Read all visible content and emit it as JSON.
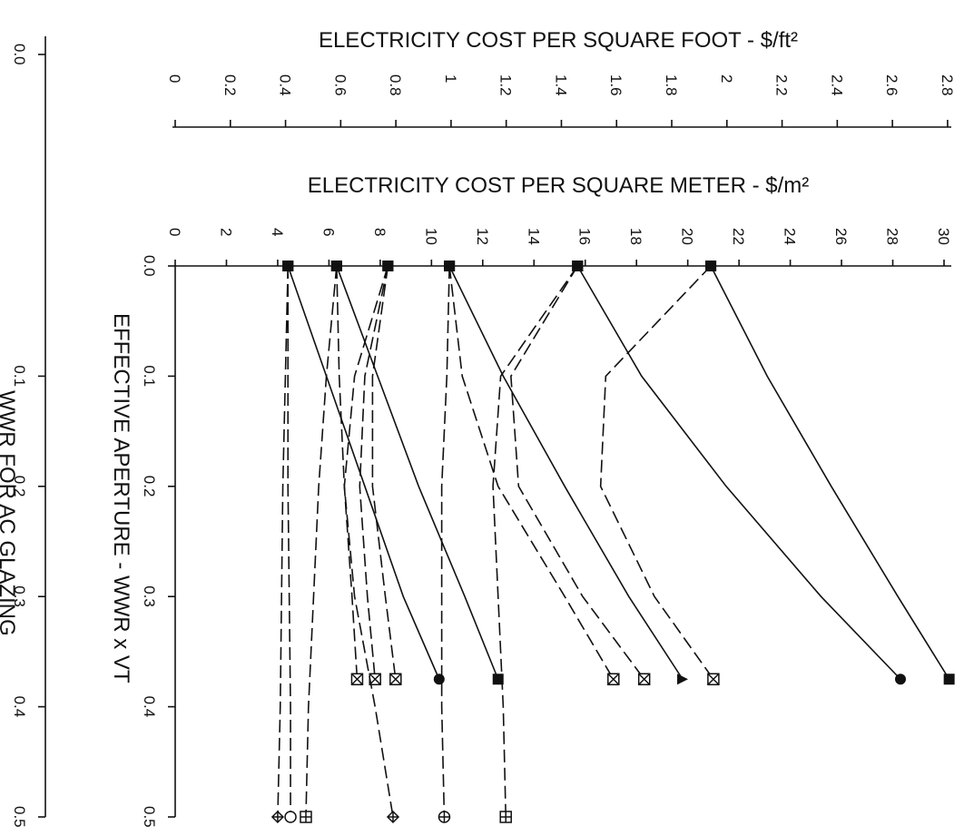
{
  "chart_data": {
    "type": "line",
    "x_label": "ELECTRICITY COST PER SQUARE METER - $/m²",
    "x2_label": "ELECTRICITY COST PER SQUARE FOOT - $/ft²",
    "y_label": "EFFECTIVE APERTURE - WWR x VT",
    "y2_label": "WWR FOR AC GLAZING",
    "xlim": [
      0,
      30
    ],
    "xticks": [
      0,
      2,
      4,
      6,
      8,
      10,
      12,
      14,
      16,
      18,
      20,
      22,
      24,
      26,
      28,
      30
    ],
    "x2lim": [
      0,
      2.8
    ],
    "x2ticks": [
      0,
      0.2,
      0.4,
      0.6,
      0.8,
      1,
      1.2,
      1.4,
      1.6,
      1.8,
      2,
      2.2,
      2.4,
      2.6,
      2.8
    ],
    "ylim": [
      0,
      0.5
    ],
    "yticks": [
      {
        "value": 0,
        "label": "0.0"
      },
      0.1,
      0.2,
      0.3,
      0.4,
      0.5
    ],
    "y2lim": [
      0,
      0.5
    ],
    "y2ticks": [
      {
        "value": 0,
        "label": "0.0"
      },
      0.1,
      0.2,
      0.3,
      0.4,
      0.5
    ],
    "start_marker": "square",
    "series": [
      {
        "color": "#111111",
        "dash": true,
        "marker": "diamond",
        "x": [
          0,
          0.1,
          0.2,
          0.3,
          0.4,
          0.5
        ],
        "values": [
          4.4,
          4.3,
          4.2,
          4.15,
          4.1,
          4.0
        ]
      },
      {
        "color": "#111111",
        "dash": true,
        "marker": "circle-open",
        "x": [
          0,
          0.1,
          0.2,
          0.3,
          0.4,
          0.5
        ],
        "values": [
          4.4,
          4.4,
          4.4,
          4.45,
          4.5,
          4.5
        ]
      },
      {
        "color": "#111111",
        "dash": true,
        "marker": "square-plus",
        "x": [
          0,
          0.1,
          0.2,
          0.3,
          0.4,
          0.5
        ],
        "values": [
          6.3,
          5.9,
          5.6,
          5.4,
          5.2,
          5.1
        ]
      },
      {
        "color": "#111111",
        "dash": false,
        "marker": "circle",
        "x": [
          0,
          0.1,
          0.2,
          0.3,
          0.375
        ],
        "values": [
          4.4,
          5.9,
          7.4,
          8.9,
          10.3
        ]
      },
      {
        "color": "#111111",
        "dash": true,
        "marker": "square-x",
        "x": [
          0,
          0.1,
          0.2,
          0.3,
          0.375
        ],
        "values": [
          6.3,
          6.4,
          6.6,
          6.9,
          7.1
        ]
      },
      {
        "color": "#111111",
        "dash": false,
        "marker": "square",
        "x": [
          0,
          0.1,
          0.2,
          0.3,
          0.375
        ],
        "values": [
          6.3,
          7.9,
          9.5,
          11.3,
          12.6
        ]
      },
      {
        "color": "#111111",
        "dash": true,
        "marker": "square-x",
        "x": [
          0,
          0.1,
          0.2,
          0.3,
          0.375
        ],
        "values": [
          8.3,
          7.4,
          7.2,
          7.5,
          7.8
        ]
      },
      {
        "color": "#111111",
        "dash": true,
        "marker": "square-x",
        "x": [
          0,
          0.1,
          0.2,
          0.3,
          0.375
        ],
        "values": [
          8.3,
          7.7,
          7.7,
          8.2,
          8.6
        ]
      },
      {
        "color": "#111111",
        "dash": true,
        "marker": "diamond",
        "x": [
          0,
          0.1,
          0.2,
          0.3,
          0.4,
          0.5
        ],
        "values": [
          8.3,
          7.0,
          6.6,
          7.0,
          7.8,
          8.5
        ]
      },
      {
        "color": "#111111",
        "dash": true,
        "marker": "circle-plus",
        "x": [
          0,
          0.1,
          0.2,
          0.3,
          0.4,
          0.5
        ],
        "values": [
          10.7,
          10.6,
          10.4,
          10.4,
          10.4,
          10.5
        ]
      },
      {
        "color": "#111111",
        "dash": true,
        "marker": "square-x",
        "x": [
          0,
          0.1,
          0.2,
          0.3,
          0.375
        ],
        "values": [
          10.7,
          11.2,
          12.6,
          15.2,
          17.1
        ]
      },
      {
        "color": "#111111",
        "dash": false,
        "marker": "triangle",
        "x": [
          0,
          0.1,
          0.2,
          0.3,
          0.375
        ],
        "values": [
          10.7,
          12.8,
          15.2,
          17.7,
          19.8
        ]
      },
      {
        "color": "#111111",
        "dash": true,
        "marker": "square-plus",
        "x": [
          0,
          0.1,
          0.2,
          0.3,
          0.4,
          0.5
        ],
        "values": [
          15.7,
          12.7,
          12.4,
          12.6,
          12.8,
          12.9
        ]
      },
      {
        "color": "#111111",
        "dash": true,
        "marker": "square-x",
        "x": [
          0,
          0.1,
          0.2,
          0.3,
          0.375
        ],
        "values": [
          15.7,
          13.1,
          13.4,
          15.9,
          18.3
        ]
      },
      {
        "color": "#111111",
        "dash": false,
        "marker": "circle",
        "x": [
          0,
          0.1,
          0.2,
          0.3,
          0.375
        ],
        "values": [
          15.7,
          18.2,
          21.5,
          25.2,
          28.3
        ]
      },
      {
        "color": "#111111",
        "dash": true,
        "marker": "square-x",
        "x": [
          0,
          0.1,
          0.2,
          0.3,
          0.375
        ],
        "values": [
          20.9,
          16.8,
          16.6,
          18.7,
          21.0
        ]
      },
      {
        "color": "#111111",
        "dash": false,
        "marker": "square",
        "x": [
          0,
          0.1,
          0.2,
          0.3,
          0.375
        ],
        "values": [
          20.9,
          23.1,
          25.6,
          28.2,
          30.2
        ]
      }
    ]
  }
}
